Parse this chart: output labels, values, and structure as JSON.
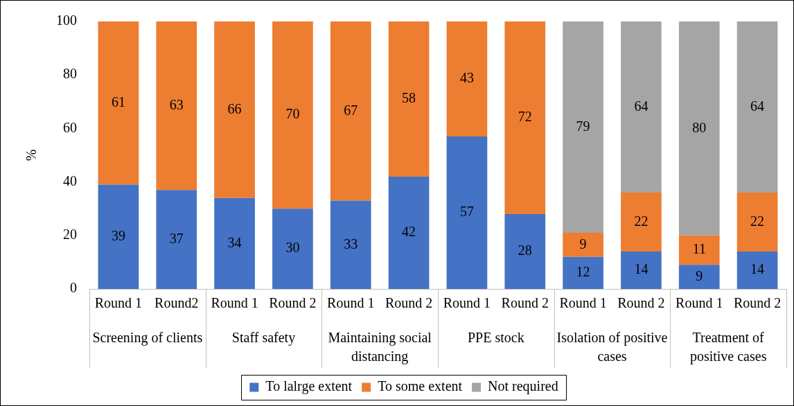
{
  "chart_data": {
    "type": "bar",
    "stacked": true,
    "ylabel": "%",
    "categories": [
      "Round 1",
      "Round2",
      "Round 1",
      "Round 2",
      "Round 1",
      "Round 2",
      "Round 1",
      "Round 2",
      "Round 1",
      "Round 2",
      "Round 1",
      "Round 2"
    ],
    "annotations": [
      "Screening of clients",
      "Staff safety",
      "Maintaining social distancing",
      "PPE stock",
      "Isolation of positive cases",
      "Treatment of positive cases"
    ],
    "series": [
      {
        "name": "To lalrge extent",
        "color": "#4472c4",
        "values": [
          39,
          37,
          34,
          30,
          33,
          42,
          57,
          28,
          12,
          14,
          9,
          14
        ]
      },
      {
        "name": "To some extent",
        "color": "#ed7d31",
        "values": [
          61,
          63,
          66,
          70,
          67,
          58,
          43,
          72,
          9,
          22,
          11,
          22
        ]
      },
      {
        "name": "Not required",
        "color": "#a5a5a5",
        "values": [
          null,
          null,
          null,
          null,
          null,
          null,
          null,
          null,
          79,
          64,
          80,
          64
        ]
      }
    ],
    "ylim": [
      0,
      100
    ],
    "yticks": [
      0,
      20,
      40,
      60,
      80,
      100
    ],
    "grid": false,
    "legend": "bottom",
    "data_labels": true
  }
}
